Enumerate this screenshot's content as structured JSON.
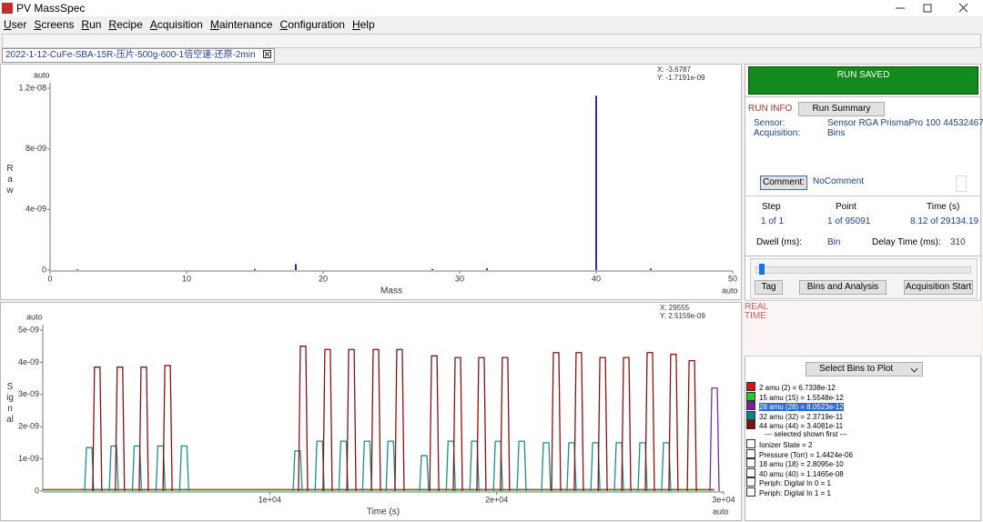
{
  "window": {
    "title": "PV MassSpec"
  },
  "menu": [
    "User",
    "Screens",
    "Run",
    "Recipe",
    "Acquisition",
    "Maintenance",
    "Configuration",
    "Help"
  ],
  "tab": "2022-1-12-CuFe-SBA-15R-压片-500g-600-1倍空速-还原-2min",
  "mass_spectrum": {
    "type": "bar",
    "top_label": "auto",
    "corner_label": "auto",
    "ylabel": "Raw",
    "xlabel": "Mass",
    "cursor": [
      "X: -3.6787",
      "Y: -1.7191e-09"
    ],
    "x": [
      2,
      15,
      18,
      28,
      32,
      40,
      44
    ],
    "values": [
      5e-11,
      8e-11,
      4e-10,
      8e-11,
      1.2e-10,
      1.15e-08,
      1e-10
    ],
    "color": "#2a2fa0",
    "xlim": [
      0,
      50
    ],
    "ylim": [
      0,
      1.2e-08
    ],
    "xticks": [
      0,
      10,
      20,
      30,
      40,
      50
    ],
    "yticks": [
      0,
      {
        "value": 4e-09,
        "label": "4e-09"
      },
      {
        "value": 8e-09,
        "label": "8e-09"
      },
      {
        "value": 1.2e-08,
        "label": "1.2e-08"
      }
    ]
  },
  "time_plot": {
    "type": "pulse",
    "top_label": "auto",
    "corner_label": "auto",
    "ylabel": "Signal",
    "xlabel": "Time (s)",
    "cursor": [
      "X: 29555",
      "Y: 2.5159e-09"
    ],
    "xlim": [
      0,
      30000
    ],
    "ylim": [
      0,
      5e-09
    ],
    "xticks": [
      {
        "value": 10000,
        "label": "1e+04"
      },
      {
        "value": 20000,
        "label": "2e+04"
      },
      {
        "value": 30000,
        "label": "3e+04"
      }
    ],
    "yticks": [
      0,
      {
        "value": 1e-09,
        "label": "1e-09"
      },
      {
        "value": 2e-09,
        "label": "2e-09"
      },
      {
        "value": 3e-09,
        "label": "3e-09"
      },
      {
        "value": 4e-09,
        "label": "4e-09"
      },
      {
        "value": 5e-09,
        "label": "5e-09"
      }
    ],
    "series": [
      {
        "color": "#d01010",
        "mode": "line",
        "x": [
          0,
          29600
        ],
        "values": [
          5e-11,
          5e-11
        ]
      },
      {
        "color": "#2fb02f",
        "mode": "line",
        "x": [
          0,
          29600
        ],
        "values": [
          3e-11,
          3e-11
        ]
      },
      {
        "color": "#1a8f8f",
        "mode": "pulse",
        "x": [
          2045,
          3130,
          4150,
          5190,
          6230,
          11230,
          12200,
          13250,
          14290,
          15330,
          16805,
          17980,
          19020,
          20060,
          21100,
          22179,
          23300,
          24350,
          25390,
          26430,
          27470
        ],
        "values": [
          1.35e-09,
          1.4e-09,
          1.4e-09,
          1.4e-09,
          1.4e-09,
          1.25e-09,
          1.55e-09,
          1.55e-09,
          1.55e-09,
          1.55e-09,
          1.1e-09,
          1.55e-09,
          1.55e-09,
          1.55e-09,
          1.55e-09,
          1.5e-09,
          1.5e-09,
          1.5e-09,
          1.5e-09,
          1.5e-09,
          1.5e-09
        ]
      },
      {
        "color": "#8b1010",
        "mode": "pulse",
        "x": [
          2400,
          3400,
          4450,
          5500,
          11470,
          12550,
          13600,
          14680,
          15720,
          17250,
          18290,
          19330,
          20370,
          22620,
          23620,
          24670,
          25710,
          26750,
          27790,
          28600
        ],
        "values": [
          3.85e-09,
          3.85e-09,
          3.85e-09,
          3.9e-09,
          4.5e-09,
          4.4e-09,
          4.4e-09,
          4.4e-09,
          4.4e-09,
          4.2e-09,
          4.15e-09,
          4.15e-09,
          4.15e-09,
          4.3e-09,
          4.3e-09,
          4.15e-09,
          4.15e-09,
          4.3e-09,
          4.25e-09,
          4.05e-09
        ]
      },
      {
        "color": "#7d2aa8",
        "mode": "pulse",
        "x": [
          29600
        ],
        "values": [
          3.2e-09
        ]
      }
    ]
  },
  "status": "RUN SAVED",
  "run_info": {
    "title": "RUN INFO",
    "summary_button": "Run Summary",
    "fields": [
      [
        "Sensor:",
        "Sensor RGA PrismaPro 100 44532467,"
      ],
      [
        "Acquisition:",
        "Bins"
      ]
    ],
    "comment_button": "Comment:",
    "comment": "NoComment",
    "headers": [
      "Step",
      "Point",
      "Time (s)"
    ],
    "row": [
      "1 of 1",
      "1 of 95091",
      "8.12 of 29134.19"
    ],
    "dwell_label": "Dwell (ms):",
    "dwell": "Bin",
    "delay_label": "Delay Time (ms):",
    "delay": "310"
  },
  "buttons": [
    "Tag",
    "Bins and Analysis",
    "Acquisition Start"
  ],
  "realtime": [
    "REAL",
    "TIME"
  ],
  "bins_select": "Select Bins to Plot",
  "bins": [
    {
      "label": "2 amu (2) = 6.7338e-12",
      "color": "#e01010",
      "checked": true
    },
    {
      "label": "15 amu (15) = 1.5548e-12",
      "color": "#22cc22",
      "checked": true
    },
    {
      "label": "28 amu (28) = 8.0523e-12",
      "color": "#7a1fa0",
      "checked": true,
      "selected": true
    },
    {
      "label": "32 amu (32) = 2.3719e-11",
      "color": "#167f7f",
      "checked": true
    },
    {
      "label": "44 amu (44) = 3.4081e-11",
      "color": "#8b0a0a",
      "checked": true
    }
  ],
  "bins_separator": "--- selected shown first ---",
  "other_bins": [
    "Ionizer State = 2",
    "Pressure (Torr) = 1.4424e-06",
    "18 amu (18) = 2.8095e-10",
    "40 amu (40) = 1.1465e-08",
    "Periph: Digital In 0 = 1",
    "Periph: Digital In 1 = 1"
  ]
}
